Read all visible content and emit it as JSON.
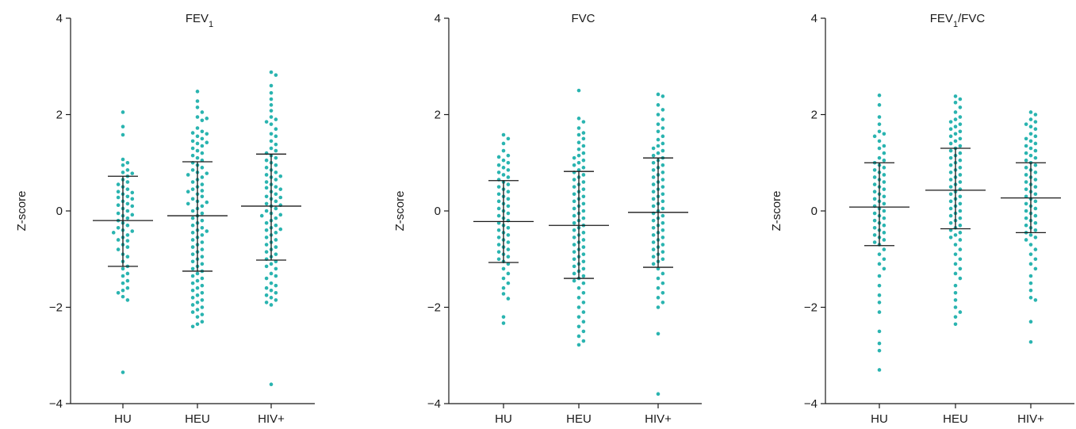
{
  "colors": {
    "points": "#2ab4b0",
    "axis": "#1a1a1a"
  },
  "chart_data": [
    {
      "type": "scatter",
      "title_main": "FEV",
      "title_sub": "1",
      "title_suffix": "",
      "ylabel": "Z-score",
      "ylim": [
        -4,
        4
      ],
      "yticks": [
        {
          "v": 4,
          "t": "4"
        },
        {
          "v": 2,
          "t": "2"
        },
        {
          "v": 0,
          "t": "0"
        },
        {
          "v": -2,
          "t": "−2"
        },
        {
          "v": -4,
          "t": "−4"
        }
      ],
      "categories": [
        "HU",
        "HEU",
        "HIV+"
      ],
      "groups": [
        {
          "name": "HU",
          "mean": -0.2,
          "sd_low": -1.15,
          "sd_high": 0.72,
          "values": [
            2.05,
            1.75,
            1.58,
            1.07,
            1.0,
            0.95,
            0.85,
            0.8,
            0.78,
            0.72,
            0.65,
            0.6,
            0.55,
            0.5,
            0.45,
            0.4,
            0.38,
            0.35,
            0.3,
            0.28,
            0.25,
            0.2,
            0.15,
            0.12,
            0.1,
            0.05,
            0.0,
            -0.05,
            -0.08,
            -0.1,
            -0.15,
            -0.2,
            -0.25,
            -0.3,
            -0.35,
            -0.4,
            -0.42,
            -0.45,
            -0.5,
            -0.55,
            -0.6,
            -0.62,
            -0.7,
            -0.75,
            -0.8,
            -0.9,
            -0.95,
            -1.05,
            -1.15,
            -1.2,
            -1.3,
            -1.35,
            -1.45,
            -1.5,
            -1.6,
            -1.65,
            -1.7,
            -1.78,
            -1.85,
            -3.35
          ]
        },
        {
          "name": "HEU",
          "mean": -0.1,
          "sd_low": -1.25,
          "sd_high": 1.02,
          "values": [
            2.48,
            2.28,
            2.15,
            2.05,
            1.95,
            1.92,
            1.88,
            1.72,
            1.65,
            1.62,
            1.6,
            1.55,
            1.5,
            1.45,
            1.42,
            1.4,
            1.35,
            1.3,
            1.25,
            1.2,
            1.15,
            1.1,
            1.05,
            1.0,
            0.95,
            0.9,
            0.85,
            0.8,
            0.78,
            0.75,
            0.7,
            0.65,
            0.6,
            0.55,
            0.5,
            0.45,
            0.42,
            0.4,
            0.35,
            0.3,
            0.25,
            0.2,
            0.18,
            0.15,
            0.1,
            0.05,
            0.0,
            -0.05,
            -0.1,
            -0.15,
            -0.2,
            -0.25,
            -0.3,
            -0.35,
            -0.4,
            -0.42,
            -0.45,
            -0.5,
            -0.55,
            -0.6,
            -0.65,
            -0.7,
            -0.75,
            -0.8,
            -0.85,
            -0.9,
            -0.95,
            -1.0,
            -1.05,
            -1.1,
            -1.15,
            -1.2,
            -1.25,
            -1.3,
            -1.35,
            -1.4,
            -1.45,
            -1.5,
            -1.55,
            -1.6,
            -1.65,
            -1.7,
            -1.75,
            -1.8,
            -1.85,
            -1.9,
            -1.95,
            -2.0,
            -2.05,
            -2.1,
            -2.15,
            -2.2,
            -2.3,
            -2.35,
            -2.4
          ]
        },
        {
          "name": "HIV+",
          "mean": 0.1,
          "sd_low": -1.02,
          "sd_high": 1.18,
          "values": [
            2.88,
            2.82,
            2.6,
            2.45,
            2.32,
            2.2,
            2.08,
            1.95,
            1.9,
            1.85,
            1.8,
            1.7,
            1.6,
            1.55,
            1.45,
            1.38,
            1.3,
            1.25,
            1.2,
            1.15,
            1.1,
            1.05,
            1.0,
            0.95,
            0.9,
            0.85,
            0.8,
            0.75,
            0.72,
            0.7,
            0.65,
            0.6,
            0.55,
            0.5,
            0.48,
            0.45,
            0.4,
            0.35,
            0.3,
            0.28,
            0.25,
            0.2,
            0.15,
            0.12,
            0.1,
            0.05,
            0.0,
            -0.05,
            -0.08,
            -0.1,
            -0.15,
            -0.2,
            -0.25,
            -0.3,
            -0.35,
            -0.38,
            -0.4,
            -0.45,
            -0.5,
            -0.55,
            -0.6,
            -0.65,
            -0.7,
            -0.75,
            -0.8,
            -0.85,
            -0.9,
            -0.95,
            -1.0,
            -1.05,
            -1.1,
            -1.15,
            -1.2,
            -1.3,
            -1.35,
            -1.4,
            -1.5,
            -1.55,
            -1.6,
            -1.65,
            -1.7,
            -1.75,
            -1.8,
            -1.85,
            -1.9,
            -1.95,
            -3.6
          ]
        }
      ]
    },
    {
      "type": "scatter",
      "title_main": "FVC",
      "title_sub": "",
      "title_suffix": "",
      "ylabel": "Z-score",
      "ylim": [
        -4,
        4
      ],
      "yticks": [
        {
          "v": 4,
          "t": "4"
        },
        {
          "v": 2,
          "t": "2"
        },
        {
          "v": 0,
          "t": "0"
        },
        {
          "v": -2,
          "t": "−2"
        },
        {
          "v": -4,
          "t": "−4"
        }
      ],
      "categories": [
        "HU",
        "HEU",
        "HIV+"
      ],
      "groups": [
        {
          "name": "HU",
          "mean": -0.22,
          "sd_low": -1.07,
          "sd_high": 0.63,
          "values": [
            1.58,
            1.5,
            1.4,
            1.25,
            1.15,
            1.12,
            1.05,
            1.0,
            0.95,
            0.9,
            0.85,
            0.8,
            0.75,
            0.7,
            0.65,
            0.6,
            0.55,
            0.5,
            0.45,
            0.4,
            0.35,
            0.3,
            0.25,
            0.2,
            0.15,
            0.1,
            0.05,
            0.0,
            -0.05,
            -0.1,
            -0.15,
            -0.2,
            -0.25,
            -0.3,
            -0.35,
            -0.4,
            -0.45,
            -0.5,
            -0.55,
            -0.6,
            -0.65,
            -0.7,
            -0.75,
            -0.8,
            -0.85,
            -0.9,
            -0.95,
            -1.0,
            -1.05,
            -1.1,
            -1.2,
            -1.3,
            -1.4,
            -1.5,
            -1.6,
            -1.72,
            -1.82,
            -2.2,
            -2.33
          ]
        },
        {
          "name": "HEU",
          "mean": -0.3,
          "sd_low": -1.4,
          "sd_high": 0.82,
          "values": [
            2.5,
            1.92,
            1.85,
            1.72,
            1.62,
            1.58,
            1.5,
            1.42,
            1.35,
            1.28,
            1.2,
            1.15,
            1.1,
            1.05,
            1.0,
            0.95,
            0.9,
            0.85,
            0.8,
            0.75,
            0.7,
            0.65,
            0.6,
            0.55,
            0.5,
            0.45,
            0.4,
            0.35,
            0.3,
            0.25,
            0.2,
            0.15,
            0.1,
            0.05,
            0.0,
            -0.05,
            -0.1,
            -0.15,
            -0.2,
            -0.25,
            -0.3,
            -0.35,
            -0.4,
            -0.45,
            -0.5,
            -0.55,
            -0.6,
            -0.65,
            -0.7,
            -0.75,
            -0.8,
            -0.85,
            -0.9,
            -0.95,
            -1.0,
            -1.05,
            -1.1,
            -1.15,
            -1.2,
            -1.25,
            -1.3,
            -1.35,
            -1.4,
            -1.45,
            -1.5,
            -1.6,
            -1.7,
            -1.8,
            -1.9,
            -2.0,
            -2.1,
            -2.2,
            -2.3,
            -2.4,
            -2.5,
            -2.6,
            -2.7,
            -2.78
          ]
        },
        {
          "name": "HIV+",
          "mean": -0.03,
          "sd_low": -1.17,
          "sd_high": 1.1,
          "values": [
            2.42,
            2.38,
            2.2,
            2.1,
            2.0,
            1.9,
            1.8,
            1.72,
            1.65,
            1.55,
            1.48,
            1.4,
            1.35,
            1.3,
            1.25,
            1.2,
            1.15,
            1.1,
            1.05,
            1.0,
            0.95,
            0.9,
            0.85,
            0.8,
            0.75,
            0.7,
            0.65,
            0.6,
            0.55,
            0.5,
            0.45,
            0.4,
            0.35,
            0.3,
            0.25,
            0.2,
            0.15,
            0.1,
            0.05,
            0.0,
            -0.05,
            -0.1,
            -0.15,
            -0.2,
            -0.25,
            -0.3,
            -0.35,
            -0.4,
            -0.45,
            -0.5,
            -0.55,
            -0.6,
            -0.65,
            -0.7,
            -0.75,
            -0.8,
            -0.85,
            -0.9,
            -0.95,
            -1.0,
            -1.05,
            -1.1,
            -1.2,
            -1.3,
            -1.4,
            -1.5,
            -1.6,
            -1.7,
            -1.8,
            -1.9,
            -2.0,
            -2.55,
            -3.8
          ]
        }
      ]
    },
    {
      "type": "scatter",
      "title_main": "FEV",
      "title_sub": "1",
      "title_suffix": "/FVC",
      "ylabel": "Z-score",
      "ylim": [
        -4,
        4
      ],
      "yticks": [
        {
          "v": 4,
          "t": "4"
        },
        {
          "v": 2,
          "t": "2"
        },
        {
          "v": 0,
          "t": "0"
        },
        {
          "v": -2,
          "t": "−2"
        },
        {
          "v": -4,
          "t": "−4"
        }
      ],
      "categories": [
        "HU",
        "HEU",
        "HIV+"
      ],
      "groups": [
        {
          "name": "HU",
          "mean": 0.08,
          "sd_low": -0.72,
          "sd_high": 1.0,
          "values": [
            2.4,
            2.2,
            1.95,
            1.8,
            1.65,
            1.6,
            1.55,
            1.45,
            1.35,
            1.3,
            1.2,
            1.1,
            1.05,
            1.0,
            0.95,
            0.9,
            0.85,
            0.8,
            0.75,
            0.7,
            0.65,
            0.6,
            0.55,
            0.5,
            0.45,
            0.4,
            0.35,
            0.3,
            0.25,
            0.2,
            0.15,
            0.1,
            0.05,
            0.0,
            -0.05,
            -0.1,
            -0.15,
            -0.2,
            -0.25,
            -0.3,
            -0.35,
            -0.4,
            -0.45,
            -0.5,
            -0.55,
            -0.6,
            -0.65,
            -0.7,
            -0.8,
            -0.9,
            -1.0,
            -1.1,
            -1.2,
            -1.35,
            -1.55,
            -1.75,
            -1.9,
            -2.1,
            -2.5,
            -2.75,
            -2.9,
            -3.3
          ]
        },
        {
          "name": "HEU",
          "mean": 0.43,
          "sd_low": -0.37,
          "sd_high": 1.3,
          "values": [
            2.38,
            2.32,
            2.25,
            2.15,
            2.05,
            1.95,
            1.9,
            1.85,
            1.8,
            1.75,
            1.7,
            1.65,
            1.6,
            1.55,
            1.5,
            1.45,
            1.4,
            1.35,
            1.3,
            1.25,
            1.2,
            1.15,
            1.1,
            1.05,
            1.0,
            0.95,
            0.9,
            0.85,
            0.8,
            0.75,
            0.7,
            0.65,
            0.6,
            0.55,
            0.5,
            0.45,
            0.4,
            0.35,
            0.3,
            0.25,
            0.2,
            0.15,
            0.1,
            0.05,
            0.0,
            -0.05,
            -0.1,
            -0.15,
            -0.2,
            -0.25,
            -0.3,
            -0.35,
            -0.4,
            -0.45,
            -0.5,
            -0.55,
            -0.6,
            -0.7,
            -0.8,
            -0.9,
            -1.0,
            -1.1,
            -1.2,
            -1.3,
            -1.4,
            -1.55,
            -1.7,
            -1.85,
            -2.0,
            -2.1,
            -2.2,
            -2.35
          ]
        },
        {
          "name": "HIV+",
          "mean": 0.27,
          "sd_low": -0.45,
          "sd_high": 1.0,
          "values": [
            2.05,
            2.0,
            1.9,
            1.85,
            1.8,
            1.75,
            1.7,
            1.6,
            1.55,
            1.5,
            1.45,
            1.4,
            1.35,
            1.3,
            1.25,
            1.2,
            1.15,
            1.1,
            1.05,
            1.0,
            0.95,
            0.9,
            0.85,
            0.8,
            0.75,
            0.7,
            0.65,
            0.6,
            0.55,
            0.5,
            0.45,
            0.4,
            0.35,
            0.3,
            0.25,
            0.2,
            0.15,
            0.1,
            0.05,
            0.0,
            -0.05,
            -0.1,
            -0.15,
            -0.2,
            -0.25,
            -0.3,
            -0.35,
            -0.4,
            -0.45,
            -0.5,
            -0.55,
            -0.6,
            -0.7,
            -0.8,
            -0.9,
            -1.0,
            -1.1,
            -1.2,
            -1.35,
            -1.5,
            -1.65,
            -1.8,
            -1.85,
            -2.3,
            -2.72
          ]
        }
      ]
    }
  ]
}
